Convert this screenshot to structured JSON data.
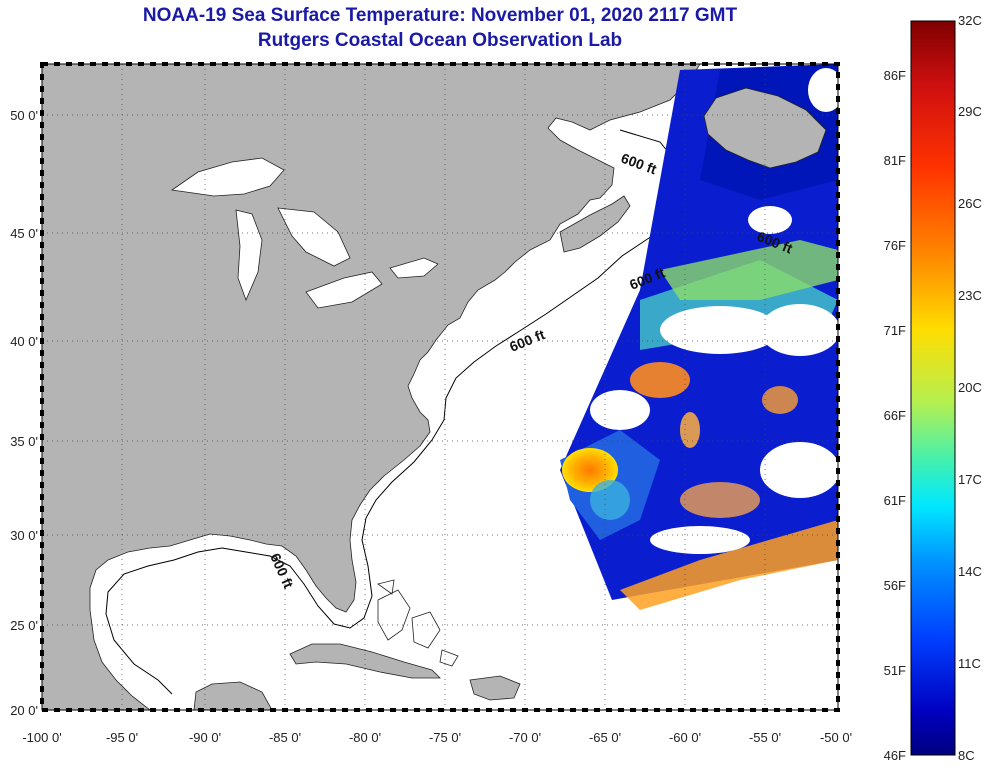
{
  "title": {
    "line1": "NOAA-19 Sea Surface Temperature:  November 01, 2020 2117 GMT",
    "line2": "Rutgers Coastal Ocean Observation Lab"
  },
  "axes": {
    "longitude_labels": [
      "-100 0'",
      "-95 0'",
      "-90 0'",
      "-85 0'",
      "-80 0'",
      "-75 0'",
      "-70 0'",
      "-65 0'",
      "-60 0'",
      "-55 0'",
      "-50 0'"
    ],
    "latitude_labels": [
      "50 0'",
      "45 0'",
      "40 0'",
      "35 0'",
      "30 0'",
      "25 0'",
      "20 0'"
    ]
  },
  "map": {
    "land_color": "#b4b4b4",
    "ocean_color": "#ffffff",
    "contour_label": "600 ft"
  },
  "colorbar": {
    "celsius_labels": [
      "32C",
      "29C",
      "26C",
      "23C",
      "20C",
      "17C",
      "14C",
      "11C",
      "8C"
    ],
    "fahrenheit_labels": [
      "86F",
      "81F",
      "76F",
      "71F",
      "66F",
      "61F",
      "56F",
      "51F",
      "46F"
    ],
    "colors_top_to_bottom": [
      "#7f0000",
      "#d01010",
      "#ff3300",
      "#ff8800",
      "#ffdd00",
      "#b4f050",
      "#40f0b0",
      "#00d0ff",
      "#0090ff",
      "#0040ff",
      "#0000c0",
      "#00007f"
    ]
  }
}
